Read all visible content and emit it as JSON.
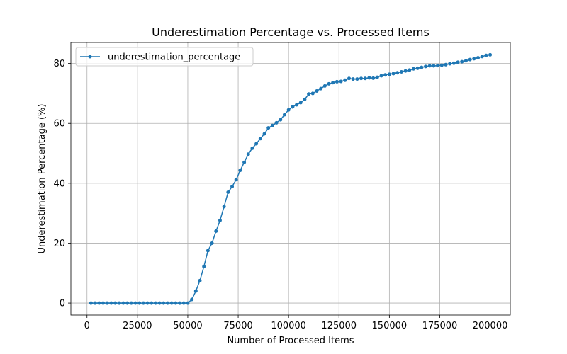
{
  "chart_data": {
    "type": "line",
    "title": "Underestimation Percentage vs. Processed Items",
    "xlabel": "Number of Processed Items",
    "ylabel": "Underestimation Percentage (%)",
    "xlim": [
      -8000,
      210000
    ],
    "ylim": [
      -4,
      87
    ],
    "xticks": [
      0,
      25000,
      50000,
      75000,
      100000,
      125000,
      150000,
      175000,
      200000
    ],
    "yticks": [
      0,
      20,
      40,
      60,
      80
    ],
    "grid": true,
    "legend": {
      "placement": "upper-left",
      "entries": [
        "underestimation_percentage"
      ]
    },
    "series": [
      {
        "name": "underestimation_percentage",
        "color": "#1f77b4",
        "marker": "circle",
        "x": [
          2000,
          4000,
          6000,
          8000,
          10000,
          12000,
          14000,
          16000,
          18000,
          20000,
          22000,
          24000,
          26000,
          28000,
          30000,
          32000,
          34000,
          36000,
          38000,
          40000,
          42000,
          44000,
          46000,
          48000,
          50000,
          52000,
          54000,
          56000,
          58000,
          60000,
          62000,
          64000,
          66000,
          68000,
          70000,
          72000,
          74000,
          76000,
          78000,
          80000,
          82000,
          84000,
          86000,
          88000,
          90000,
          92000,
          94000,
          96000,
          98000,
          100000,
          102000,
          104000,
          106000,
          108000,
          110000,
          112000,
          114000,
          116000,
          118000,
          120000,
          122000,
          124000,
          126000,
          128000,
          130000,
          132000,
          134000,
          136000,
          138000,
          140000,
          142000,
          144000,
          146000,
          148000,
          150000,
          152000,
          154000,
          156000,
          158000,
          160000,
          162000,
          164000,
          166000,
          168000,
          170000,
          172000,
          174000,
          176000,
          178000,
          180000,
          182000,
          184000,
          186000,
          188000,
          190000,
          192000,
          194000,
          196000,
          198000,
          200000
        ],
        "y": [
          0,
          0,
          0,
          0,
          0,
          0,
          0,
          0,
          0,
          0,
          0,
          0,
          0,
          0,
          0,
          0,
          0,
          0,
          0,
          0,
          0,
          0,
          0,
          0,
          0,
          1.2,
          4.0,
          7.5,
          12.2,
          17.5,
          20.0,
          24.0,
          27.6,
          32.2,
          37.0,
          38.9,
          41.2,
          44.3,
          47.0,
          49.7,
          51.7,
          53.2,
          54.9,
          56.5,
          58.5,
          59.3,
          60.2,
          61.2,
          62.9,
          64.5,
          65.5,
          66.2,
          66.9,
          68.0,
          69.8,
          70.0,
          70.8,
          71.6,
          72.5,
          73.2,
          73.6,
          73.9,
          74.0,
          74.4,
          75.0,
          74.8,
          74.8,
          75.0,
          75.0,
          75.2,
          75.1,
          75.4,
          75.9,
          76.2,
          76.4,
          76.6,
          76.9,
          77.2,
          77.5,
          77.8,
          78.2,
          78.4,
          78.7,
          79.0,
          79.2,
          79.2,
          79.3,
          79.4,
          79.6,
          79.9,
          80.1,
          80.4,
          80.6,
          80.9,
          81.3,
          81.6,
          81.9,
          82.3,
          82.7,
          82.9
        ]
      }
    ]
  }
}
